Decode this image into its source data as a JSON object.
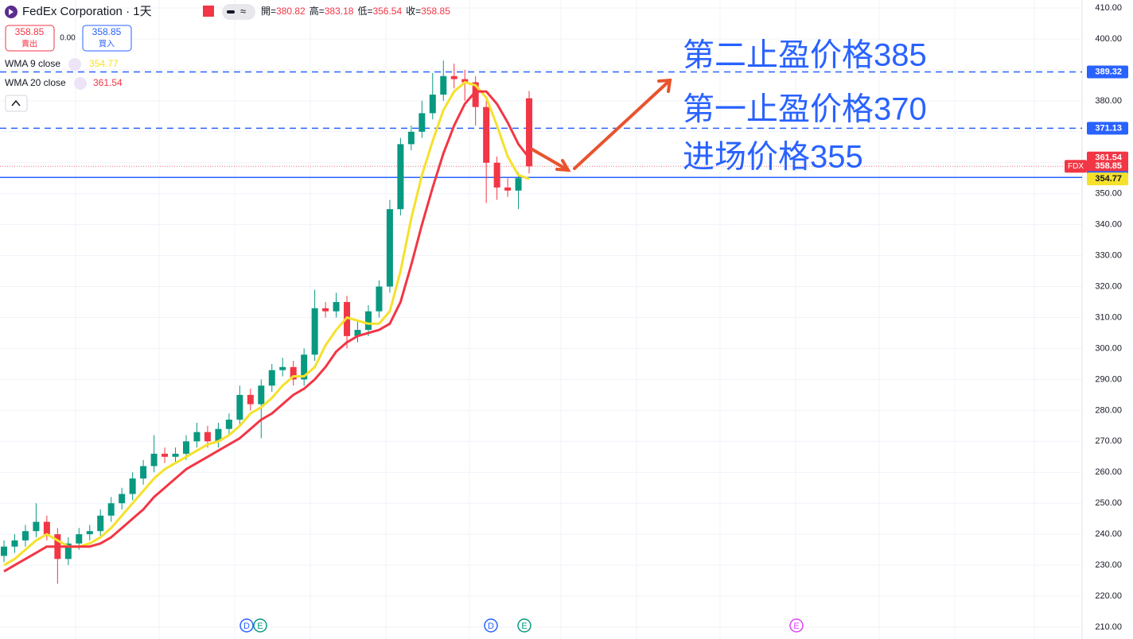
{
  "chart_data": {
    "type": "candlestick",
    "header": {
      "symbol": "FedEx Corporation · 1天",
      "ohlc": [
        {
          "label": "開=",
          "value": 380.82
        },
        {
          "label": "高=",
          "value": 383.18
        },
        {
          "label": "低=",
          "value": 356.54
        },
        {
          "label": "收=",
          "value": 358.85
        }
      ]
    },
    "sell": {
      "price": 358.85,
      "label": "賣出"
    },
    "spread": "0.00",
    "buy": {
      "price": 358.85,
      "label": "買入"
    },
    "ticker": "FDX",
    "up_color": "#089981",
    "down_color": "#f23645",
    "open": [
      233,
      236,
      238,
      241,
      244,
      240,
      232,
      237,
      240,
      241,
      246,
      250,
      253,
      258,
      262,
      266,
      265,
      266,
      270,
      273,
      270,
      274,
      277,
      285,
      282,
      288,
      293,
      294,
      290,
      298,
      313,
      312,
      315,
      304,
      306,
      312,
      320,
      345,
      366,
      370,
      376,
      382,
      388,
      387,
      386,
      378,
      360,
      352,
      351,
      380.82
    ],
    "high": [
      238,
      240,
      243,
      250,
      246,
      242,
      239,
      242,
      243,
      248,
      252,
      255,
      260,
      264,
      272,
      268,
      268,
      272,
      276,
      275,
      276,
      279,
      288,
      287,
      290,
      295,
      297,
      296,
      300,
      319,
      315,
      318,
      317,
      309,
      314,
      322,
      348,
      368,
      372,
      380,
      389,
      393,
      392,
      390,
      388,
      380,
      362,
      355,
      357,
      383.18
    ],
    "low": [
      231,
      234,
      236,
      239,
      238,
      224,
      230,
      235,
      238,
      239,
      244,
      248,
      251,
      256,
      260,
      263,
      263,
      264,
      268,
      268,
      268,
      272,
      275,
      280,
      271,
      286,
      291,
      288,
      288,
      296,
      310,
      310,
      300,
      302,
      304,
      310,
      318,
      343,
      364,
      368,
      374,
      380,
      384,
      380,
      372,
      347,
      348,
      349,
      345,
      356.54
    ],
    "close": [
      236,
      238,
      241,
      244,
      240,
      232,
      237,
      240,
      241,
      246,
      250,
      253,
      258,
      262,
      266,
      265,
      266,
      270,
      273,
      270,
      274,
      277,
      285,
      282,
      288,
      293,
      294,
      290,
      298,
      313,
      312,
      315,
      304,
      306,
      312,
      320,
      345,
      366,
      370,
      376,
      382,
      388,
      387,
      386,
      378,
      360,
      352,
      351,
      355,
      358.85
    ],
    "series": [
      {
        "name": "WMA 9 close",
        "color": "#f5e12b",
        "values": [
          230,
          232,
          235,
          238,
          240,
          238,
          236,
          236,
          237,
          239,
          242,
          246,
          250,
          254,
          258,
          261,
          263,
          265,
          267,
          269,
          270,
          272,
          275,
          279,
          281,
          284,
          288,
          291,
          291,
          294,
          301,
          306,
          310,
          309,
          308,
          308,
          312,
          325,
          342,
          356,
          367,
          377,
          383,
          386,
          385,
          381,
          372,
          362,
          356,
          354.77
        ]
      },
      {
        "name": "WMA 20 close",
        "color": "#f23645",
        "values": [
          228,
          230,
          232,
          234,
          236,
          236,
          236,
          236,
          236,
          237,
          239,
          242,
          245,
          248,
          252,
          255,
          258,
          261,
          263,
          265,
          267,
          269,
          271,
          274,
          277,
          279,
          282,
          285,
          287,
          290,
          294,
          299,
          302,
          304,
          305,
          306,
          308,
          315,
          327,
          340,
          352,
          363,
          372,
          379,
          383,
          383,
          379,
          373,
          366,
          361.54
        ]
      }
    ],
    "price_lines": [
      {
        "value": 389.32,
        "style": "dashed"
      },
      {
        "value": 371.13,
        "style": "dashed"
      },
      {
        "value": 355.25,
        "style": "solid"
      }
    ],
    "annotations": [
      "第二止盈价格385",
      "第一止盈价格370",
      "进场价格355"
    ],
    "events": [
      "D",
      "E",
      "D",
      "E",
      "E"
    ],
    "ylim": [
      210,
      410
    ],
    "yticks": [
      {
        "value": 210,
        "label": "210.00"
      },
      {
        "value": 220,
        "label": "220.00"
      },
      {
        "value": 230,
        "label": "230.00"
      },
      {
        "value": 240,
        "label": "240.00"
      },
      {
        "value": 250,
        "label": "250.00"
      },
      {
        "value": 260,
        "label": "260.00"
      },
      {
        "value": 270,
        "label": "270.00"
      },
      {
        "value": 280,
        "label": "280.00"
      },
      {
        "value": 290,
        "label": "290.00"
      },
      {
        "value": 300,
        "label": "300.00"
      },
      {
        "value": 310,
        "label": "310.00"
      },
      {
        "value": 320,
        "label": "320.00"
      },
      {
        "value": 330,
        "label": "330.00"
      },
      {
        "value": 340,
        "label": "340.00"
      },
      {
        "value": 350,
        "label": "350.00"
      },
      {
        "value": 360,
        "label": "360.00"
      },
      {
        "value": 370,
        "label": "370.00"
      },
      {
        "value": 380,
        "label": "380.00"
      },
      {
        "value": 390,
        "label": "390.00"
      },
      {
        "value": 400,
        "label": "400.00"
      },
      {
        "value": 410,
        "label": "410.00"
      }
    ],
    "grid": true
  }
}
